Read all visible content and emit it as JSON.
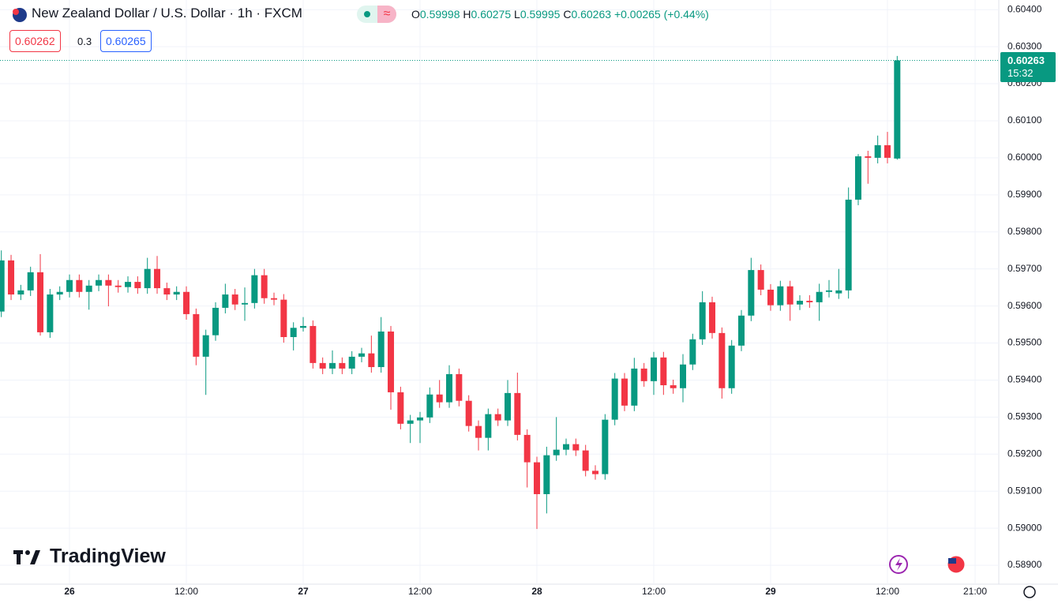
{
  "header": {
    "title": "New Zealand Dollar / U.S. Dollar · 1h · FXCM",
    "ohlc_labels": [
      "O",
      "H",
      "L",
      "C"
    ],
    "change": "+0.00265 (+0.44%)",
    "sell": "0.60262",
    "spread": "0.3",
    "buy": "0.60265",
    "countdown": "15:32",
    "brand": "TradingView"
  },
  "chart_data": {
    "type": "candlestick",
    "up_color": "#089981",
    "down_color": "#f23645",
    "grid": true,
    "categories": [
      null,
      null,
      null,
      null,
      null,
      null,
      null,
      "26",
      null,
      null,
      null,
      null,
      null,
      null,
      null,
      null,
      null,
      null,
      null,
      "12:00",
      null,
      null,
      null,
      null,
      null,
      null,
      null,
      null,
      null,
      null,
      null,
      "27",
      null,
      null,
      null,
      null,
      null,
      null,
      null,
      null,
      null,
      null,
      null,
      "12:00",
      null,
      null,
      null,
      null,
      null,
      null,
      null,
      null,
      null,
      null,
      null,
      "28",
      null,
      null,
      null,
      null,
      null,
      null,
      null,
      null,
      null,
      null,
      null,
      "12:00",
      null,
      null,
      null,
      null,
      null,
      null,
      null,
      null,
      null,
      null,
      null,
      "29",
      null,
      null,
      null,
      null,
      null,
      null,
      null,
      null,
      null,
      null,
      null,
      "12:00",
      null,
      null,
      null,
      null,
      null,
      null,
      null,
      null,
      "21:00",
      null,
      null
    ],
    "open": [
      0.59585,
      0.59723,
      0.59631,
      0.59642,
      0.59691,
      0.59529,
      0.59631,
      0.59638,
      0.5967,
      0.59638,
      0.59655,
      0.5967,
      0.59655,
      0.59651,
      0.59665,
      0.59648,
      0.597,
      0.59648,
      0.59631,
      0.59638,
      0.59578,
      0.59463,
      0.59521,
      0.59595,
      0.59631,
      0.59604,
      0.59608,
      0.59683,
      0.59621,
      0.59617,
      0.59516,
      0.59541,
      0.59546,
      0.59446,
      0.59431,
      0.59446,
      0.59431,
      0.59463,
      0.59472,
      0.59435,
      0.59531,
      0.59367,
      0.59282,
      0.59291,
      0.59299,
      0.59361,
      0.5934,
      0.59416,
      0.59344,
      0.59276,
      0.59244,
      0.59308,
      0.59291,
      0.59365,
      0.59252,
      0.59178,
      0.59092,
      0.59197,
      0.59212,
      0.59227,
      0.5921,
      0.59155,
      0.59146,
      0.59293,
      0.59404,
      0.59331,
      0.59431,
      0.59397,
      0.59461,
      0.59386,
      0.59378,
      0.59442,
      0.5951,
      0.5961,
      0.59527,
      0.59378,
      0.59493,
      0.59574,
      0.59697,
      0.59644,
      0.59602,
      0.59653,
      0.59604,
      0.59614,
      0.5961,
      0.59638,
      0.59634,
      0.59642,
      0.59887,
      0.60004,
      0.6,
      0.60034,
      0.59998,
      null,
      null,
      null,
      null,
      null,
      null,
      null,
      null,
      null,
      null
    ],
    "high": [
      0.5975,
      0.59738,
      0.59657,
      0.59706,
      0.5974,
      0.59646,
      0.59653,
      0.59685,
      0.59685,
      0.5967,
      0.59685,
      0.59685,
      0.5967,
      0.5968,
      0.5968,
      0.5973,
      0.59735,
      0.59663,
      0.59653,
      0.59653,
      0.59593,
      0.59536,
      0.5961,
      0.5966,
      0.59646,
      0.5965,
      0.597,
      0.597,
      0.59636,
      0.59632,
      0.59556,
      0.5957,
      0.59561,
      0.59461,
      0.5948,
      0.59461,
      0.59478,
      0.59487,
      0.5952,
      0.5957,
      0.59546,
      0.59382,
      0.59306,
      0.59314,
      0.5938,
      0.594,
      0.5944,
      0.59431,
      0.59359,
      0.59291,
      0.59323,
      0.59323,
      0.594,
      0.5942,
      0.59267,
      0.59193,
      0.5922,
      0.593,
      0.59242,
      0.59242,
      0.59225,
      0.5917,
      0.59308,
      0.59419,
      0.59419,
      0.5946,
      0.59446,
      0.59476,
      0.59476,
      0.59401,
      0.5947,
      0.59525,
      0.5964,
      0.59625,
      0.59542,
      0.59508,
      0.59589,
      0.5973,
      0.59712,
      0.59659,
      0.59668,
      0.59668,
      0.59629,
      0.59629,
      0.5966,
      0.5967,
      0.597,
      0.5992,
      0.6001,
      0.60019,
      0.6006,
      0.6007,
      0.60275,
      null,
      null,
      null,
      null,
      null,
      null,
      null,
      null,
      null,
      null
    ],
    "low": [
      0.5957,
      0.59616,
      0.59616,
      0.59627,
      0.5952,
      0.59514,
      0.59616,
      0.59623,
      0.59623,
      0.5959,
      0.5964,
      0.59599,
      0.59636,
      0.59636,
      0.59633,
      0.59633,
      0.59633,
      0.59616,
      0.59616,
      0.59563,
      0.5944,
      0.5936,
      0.59506,
      0.5958,
      0.59589,
      0.5956,
      0.59593,
      0.59606,
      0.59602,
      0.59501,
      0.5948,
      0.59531,
      0.59431,
      0.59416,
      0.59416,
      0.59416,
      0.59416,
      0.59448,
      0.5942,
      0.5942,
      0.5932,
      0.59267,
      0.5923,
      0.5923,
      0.59284,
      0.59325,
      0.59325,
      0.59329,
      0.59261,
      0.5921,
      0.5921,
      0.59276,
      0.59276,
      0.59237,
      0.5911,
      0.58998,
      0.5904,
      0.59182,
      0.59197,
      0.59195,
      0.5914,
      0.59131,
      0.59131,
      0.59278,
      0.59316,
      0.59316,
      0.59382,
      0.5936,
      0.5936,
      0.59363,
      0.5934,
      0.59427,
      0.59495,
      0.59512,
      0.5935,
      0.59363,
      0.59478,
      0.59559,
      0.59629,
      0.59587,
      0.59587,
      0.5956,
      0.59589,
      0.59595,
      0.5956,
      0.59623,
      0.59619,
      0.5962,
      0.59872,
      0.5993,
      0.59985,
      0.59985,
      0.59995,
      null,
      null,
      null,
      null,
      null,
      null,
      null,
      null,
      null,
      null
    ],
    "close": [
      0.59723,
      0.59631,
      0.59642,
      0.59691,
      0.59529,
      0.59631,
      0.59638,
      0.5967,
      0.59638,
      0.59655,
      0.5967,
      0.59655,
      0.59651,
      0.59665,
      0.59648,
      0.597,
      0.59648,
      0.59631,
      0.59638,
      0.59578,
      0.59463,
      0.59521,
      0.59595,
      0.59631,
      0.59604,
      0.59608,
      0.59683,
      0.59621,
      0.59617,
      0.59516,
      0.59541,
      0.59546,
      0.59446,
      0.59431,
      0.59446,
      0.59431,
      0.59463,
      0.59472,
      0.59435,
      0.59531,
      0.59367,
      0.59282,
      0.59291,
      0.59299,
      0.59361,
      0.5934,
      0.59416,
      0.59344,
      0.59276,
      0.59244,
      0.59308,
      0.59291,
      0.59365,
      0.59252,
      0.59178,
      0.59092,
      0.59197,
      0.59212,
      0.59227,
      0.5921,
      0.59155,
      0.59146,
      0.59293,
      0.59404,
      0.59331,
      0.59431,
      0.59397,
      0.59461,
      0.59386,
      0.59378,
      0.59442,
      0.5951,
      0.5961,
      0.59527,
      0.59378,
      0.59493,
      0.59574,
      0.59697,
      0.59644,
      0.59602,
      0.59653,
      0.59604,
      0.59614,
      0.5961,
      0.59638,
      0.59642,
      0.59642,
      0.59887,
      0.60004,
      0.6,
      0.60034,
      0.6,
      0.60263,
      null,
      null,
      null,
      null,
      null,
      null,
      null,
      null,
      null,
      null
    ],
    "ylim": [
      0.58849,
      0.60426
    ],
    "yticks": [
      {
        "value": 0.589,
        "label": "0.58900"
      },
      {
        "value": 0.59,
        "label": "0.59000"
      },
      {
        "value": 0.591,
        "label": "0.59100"
      },
      {
        "value": 0.592,
        "label": "0.59200"
      },
      {
        "value": 0.593,
        "label": "0.59300"
      },
      {
        "value": 0.594,
        "label": "0.59400"
      },
      {
        "value": 0.595,
        "label": "0.59500"
      },
      {
        "value": 0.596,
        "label": "0.59600"
      },
      {
        "value": 0.597,
        "label": "0.59700"
      },
      {
        "value": 0.598,
        "label": "0.59800"
      },
      {
        "value": 0.599,
        "label": "0.59900"
      },
      {
        "value": 0.6,
        "label": "0.60000"
      },
      {
        "value": 0.601,
        "label": "0.60100"
      },
      {
        "value": 0.602,
        "label": "0.60200"
      },
      {
        "value": 0.603,
        "label": "0.60300"
      },
      {
        "value": 0.604,
        "label": "0.60400"
      }
    ]
  }
}
